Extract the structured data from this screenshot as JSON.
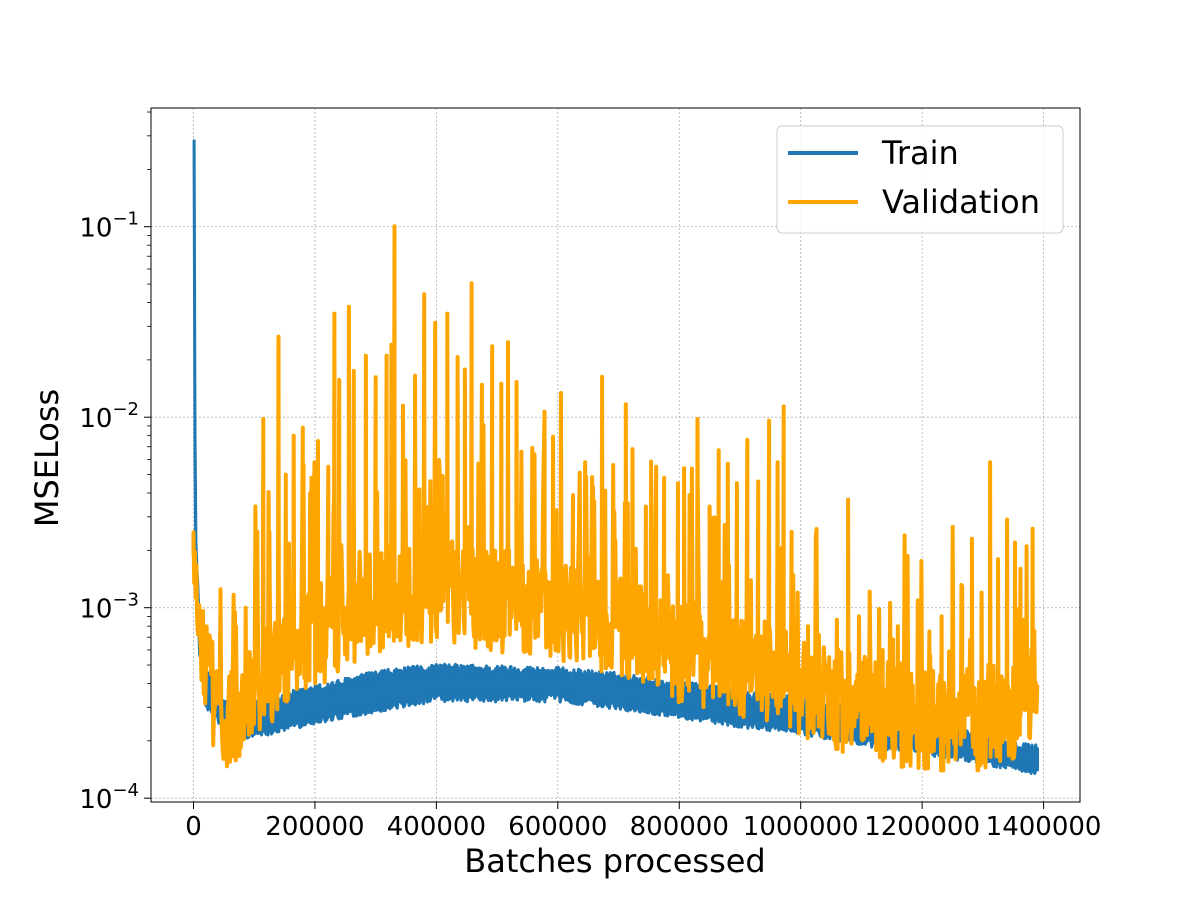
{
  "chart_data": {
    "type": "line",
    "title": "",
    "xlabel": "Batches processed",
    "ylabel": "MSELoss",
    "xlim": [
      -70000,
      1460000
    ],
    "ylim": [
      9.55e-05,
      0.42
    ],
    "y_scale": "log",
    "grid": true,
    "legend_position": "top-right",
    "x_ticks": [
      0,
      200000,
      400000,
      600000,
      800000,
      1000000,
      1200000,
      1400000
    ],
    "x_tick_labels": [
      "0",
      "200000",
      "400000",
      "600000",
      "800000",
      "1000000",
      "1200000",
      "1400000"
    ],
    "y_ticks": [
      0.0001,
      0.001,
      0.01,
      0.1
    ],
    "y_tick_labels": [
      "10",
      "10",
      "10",
      "10"
    ],
    "y_tick_exponents": [
      "−4",
      "−3",
      "−2",
      "−1"
    ],
    "series": [
      {
        "name": "Train",
        "color": "#1f77b4",
        "band_lower": [
          [
            1000,
            0.25
          ],
          [
            3000,
            0.002
          ],
          [
            10000,
            0.0006
          ],
          [
            20000,
            0.00032
          ],
          [
            40000,
            0.00026
          ],
          [
            60000,
            0.00022
          ],
          [
            100000,
            0.00022
          ],
          [
            200000,
            0.00026
          ],
          [
            300000,
            0.0003
          ],
          [
            400000,
            0.00034
          ],
          [
            500000,
            0.00034
          ],
          [
            600000,
            0.00034
          ],
          [
            700000,
            0.00031
          ],
          [
            800000,
            0.00028
          ],
          [
            900000,
            0.00025
          ],
          [
            1000000,
            0.00023
          ],
          [
            1100000,
            0.0002
          ],
          [
            1200000,
            0.00018
          ],
          [
            1300000,
            0.00016
          ],
          [
            1390000,
            0.00014
          ]
        ],
        "band_upper": [
          [
            1000,
            0.3
          ],
          [
            3000,
            0.0025
          ],
          [
            10000,
            0.0008
          ],
          [
            20000,
            0.0005
          ],
          [
            40000,
            0.00033
          ],
          [
            60000,
            0.0003
          ],
          [
            100000,
            0.00031
          ],
          [
            200000,
            0.00037
          ],
          [
            300000,
            0.00044
          ],
          [
            400000,
            0.00048
          ],
          [
            500000,
            0.00047
          ],
          [
            600000,
            0.00046
          ],
          [
            700000,
            0.00043
          ],
          [
            800000,
            0.00039
          ],
          [
            900000,
            0.00035
          ],
          [
            1000000,
            0.00032
          ],
          [
            1100000,
            0.00028
          ],
          [
            1200000,
            0.00024
          ],
          [
            1300000,
            0.00021
          ],
          [
            1390000,
            0.00018
          ]
        ]
      },
      {
        "name": "Validation",
        "color": "#ffa500",
        "baseline": [
          [
            0,
            0.0019
          ],
          [
            15000,
            0.0006
          ],
          [
            40000,
            0.00028
          ],
          [
            70000,
            0.00025
          ],
          [
            100000,
            0.0004
          ],
          [
            200000,
            0.0007
          ],
          [
            300000,
            0.0011
          ],
          [
            400000,
            0.0012
          ],
          [
            500000,
            0.0011
          ],
          [
            600000,
            0.001
          ],
          [
            700000,
            0.0008
          ],
          [
            800000,
            0.0006
          ],
          [
            900000,
            0.0005
          ],
          [
            1000000,
            0.0004
          ],
          [
            1100000,
            0.0003
          ],
          [
            1200000,
            0.00026
          ],
          [
            1300000,
            0.00025
          ],
          [
            1390000,
            0.0003
          ]
        ],
        "peaks": [
          [
            0,
            0.0019
          ],
          [
            70000,
            0.0008
          ],
          [
            86000,
            0.001
          ],
          [
            105000,
            0.0025
          ],
          [
            115000,
            0.0098
          ],
          [
            125000,
            0.0025
          ],
          [
            140000,
            0.0265
          ],
          [
            152000,
            0.005
          ],
          [
            165000,
            0.008
          ],
          [
            180000,
            0.0088
          ],
          [
            192000,
            0.004
          ],
          [
            205000,
            0.0075
          ],
          [
            222000,
            0.0055
          ],
          [
            232000,
            0.035
          ],
          [
            240000,
            0.0157
          ],
          [
            256000,
            0.038
          ],
          [
            264000,
            0.0175
          ],
          [
            284000,
            0.021
          ],
          [
            300000,
            0.0162
          ],
          [
            318000,
            0.021
          ],
          [
            326000,
            0.024
          ],
          [
            331000,
            0.1005
          ],
          [
            345000,
            0.0115
          ],
          [
            365000,
            0.0165
          ],
          [
            380000,
            0.0442
          ],
          [
            398000,
            0.0313
          ],
          [
            418000,
            0.035
          ],
          [
            435000,
            0.0207
          ],
          [
            447000,
            0.0178
          ],
          [
            458000,
            0.0505
          ],
          [
            475000,
            0.0148
          ],
          [
            492000,
            0.0236
          ],
          [
            507000,
            0.015
          ],
          [
            518000,
            0.0248
          ],
          [
            532000,
            0.0153
          ],
          [
            558000,
            0.0069
          ],
          [
            578000,
            0.0107
          ],
          [
            592000,
            0.0079
          ],
          [
            605000,
            0.0134
          ],
          [
            625000,
            0.0039
          ],
          [
            645000,
            0.0058
          ],
          [
            658000,
            0.0043
          ],
          [
            673000,
            0.0163
          ],
          [
            693000,
            0.0032
          ],
          [
            712000,
            0.0117
          ],
          [
            723000,
            0.0068
          ],
          [
            745000,
            0.0034
          ],
          [
            762000,
            0.0055
          ],
          [
            775000,
            0.0048
          ],
          [
            798000,
            0.0045
          ],
          [
            808000,
            0.0054
          ],
          [
            817000,
            0.0039
          ],
          [
            830000,
            0.0098
          ],
          [
            850000,
            0.0034
          ],
          [
            865000,
            0.0067
          ],
          [
            880000,
            0.0057
          ],
          [
            895000,
            0.0045
          ],
          [
            912000,
            0.0076
          ],
          [
            930000,
            0.0046
          ],
          [
            948000,
            0.0096
          ],
          [
            962000,
            0.0058
          ],
          [
            972000,
            0.0114
          ],
          [
            985000,
            0.0025
          ],
          [
            995000,
            0.0012
          ],
          [
            1012000,
            0.0008
          ],
          [
            1030000,
            0.00072
          ],
          [
            1047000,
            0.00055
          ],
          [
            1062000,
            0.0006
          ],
          [
            1078000,
            0.0037
          ],
          [
            1096000,
            0.0009
          ],
          [
            1115000,
            0.0005
          ],
          [
            1135000,
            0.0006
          ],
          [
            1160000,
            0.0008
          ],
          [
            1182000,
            0.00045
          ],
          [
            1197000,
            0.0006
          ],
          [
            1212000,
            0.00075
          ],
          [
            1232000,
            0.0009
          ],
          [
            1250000,
            0.0016
          ],
          [
            1266000,
            0.0013
          ],
          [
            1282000,
            0.0023
          ],
          [
            1298000,
            0.0012
          ],
          [
            1312000,
            0.0058
          ],
          [
            1325000,
            0.0018
          ],
          [
            1340000,
            0.0029
          ],
          [
            1353000,
            0.0022
          ],
          [
            1362000,
            0.0016
          ],
          [
            1372000,
            0.0021
          ],
          [
            1382000,
            0.0026
          ],
          [
            1390000,
            0.0013
          ]
        ]
      }
    ]
  }
}
